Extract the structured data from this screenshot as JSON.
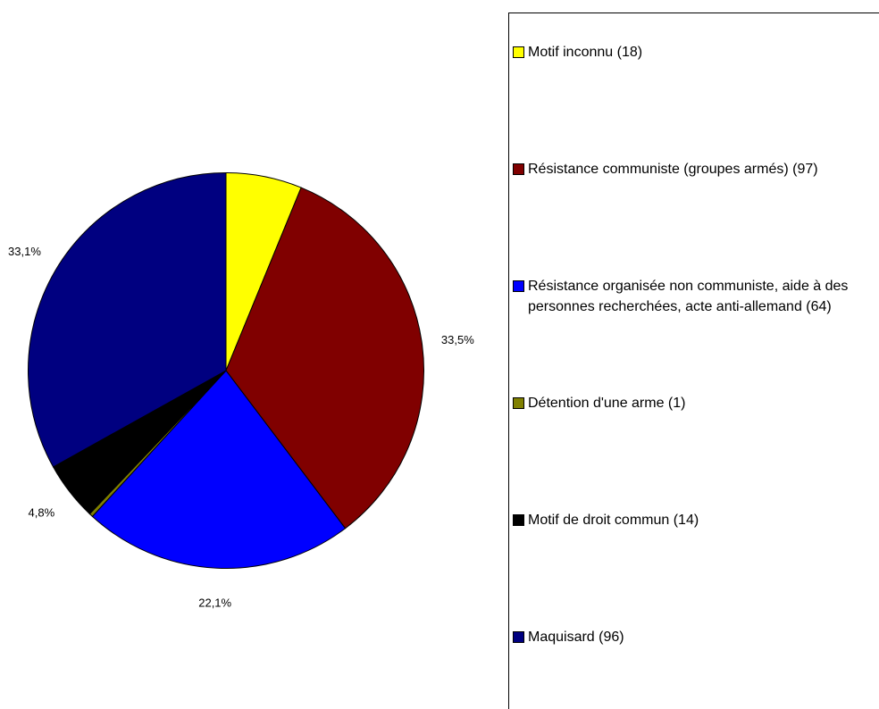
{
  "chart_data": {
    "type": "pie",
    "categories": [
      "Motif inconnu (18)",
      "Résistance communiste (groupes armés) (97)",
      "Résistance organisée non communiste, aide à des personnes recherchées, acte anti-allemand (64)",
      "Détention d'une arme (1)",
      "Motif de droit commun (14)",
      "Maquisard (96)"
    ],
    "values": [
      6.2,
      33.5,
      22.1,
      0.3,
      4.8,
      33.1
    ],
    "value_labels": [
      null,
      "33,5%",
      "22,1%",
      null,
      "4,8%",
      "33,1%"
    ],
    "colors": [
      "#ffff00",
      "#800000",
      "#0000ff",
      "#808000",
      "#000000",
      "#000080"
    ],
    "legend": "right"
  }
}
